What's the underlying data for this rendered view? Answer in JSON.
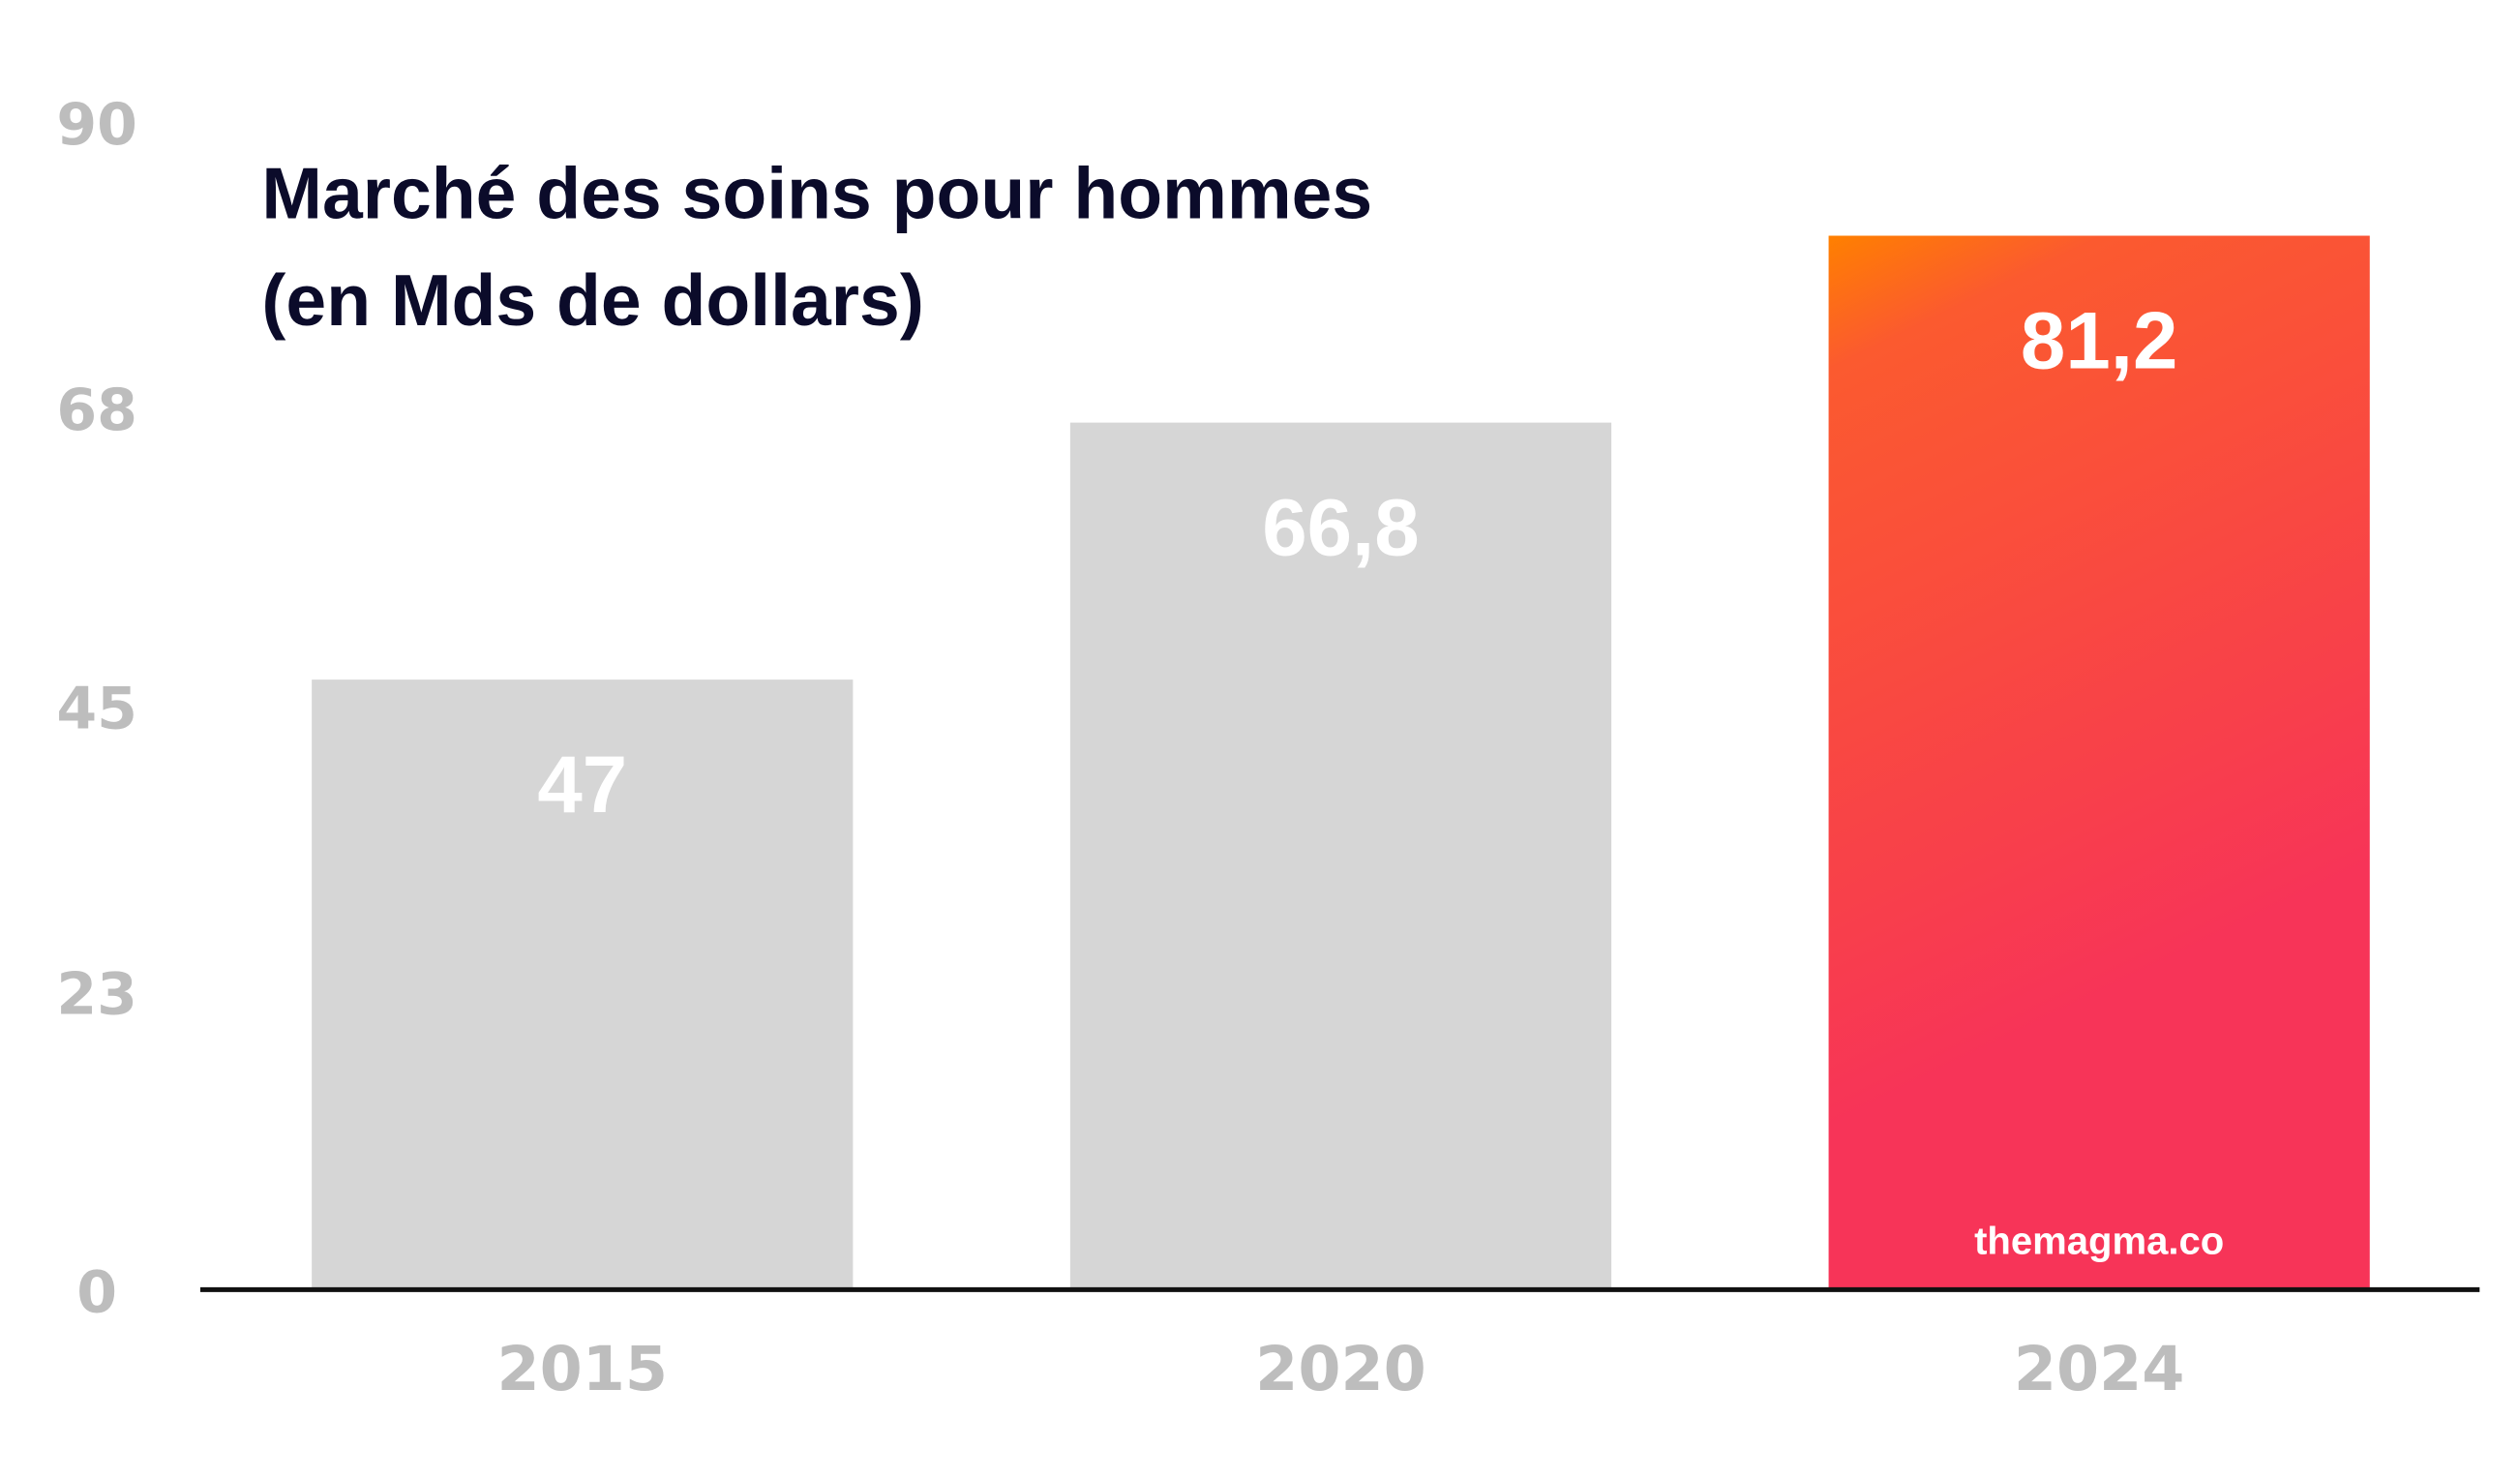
{
  "chart_data": {
    "type": "bar",
    "title_lines": [
      "Marché des soins pour hommes",
      "(en Mds de dollars)"
    ],
    "categories": [
      "2015",
      "2020",
      "2024"
    ],
    "values": [
      47,
      66.8,
      81.2
    ],
    "value_labels": [
      "47",
      "66,8",
      "81,2"
    ],
    "yticks": [
      0,
      23,
      45,
      68,
      90
    ],
    "ylim": [
      0,
      90
    ],
    "xlabel": "",
    "ylabel": "",
    "grid": false,
    "colors": {
      "default": "#d6d6d6",
      "highlight_top": "#ff8000",
      "highlight_mid": "#fb5533",
      "highlight_bottom": "#f73458",
      "axis": "#111111"
    },
    "highlight_index": 2,
    "watermark": "themagma.co"
  }
}
